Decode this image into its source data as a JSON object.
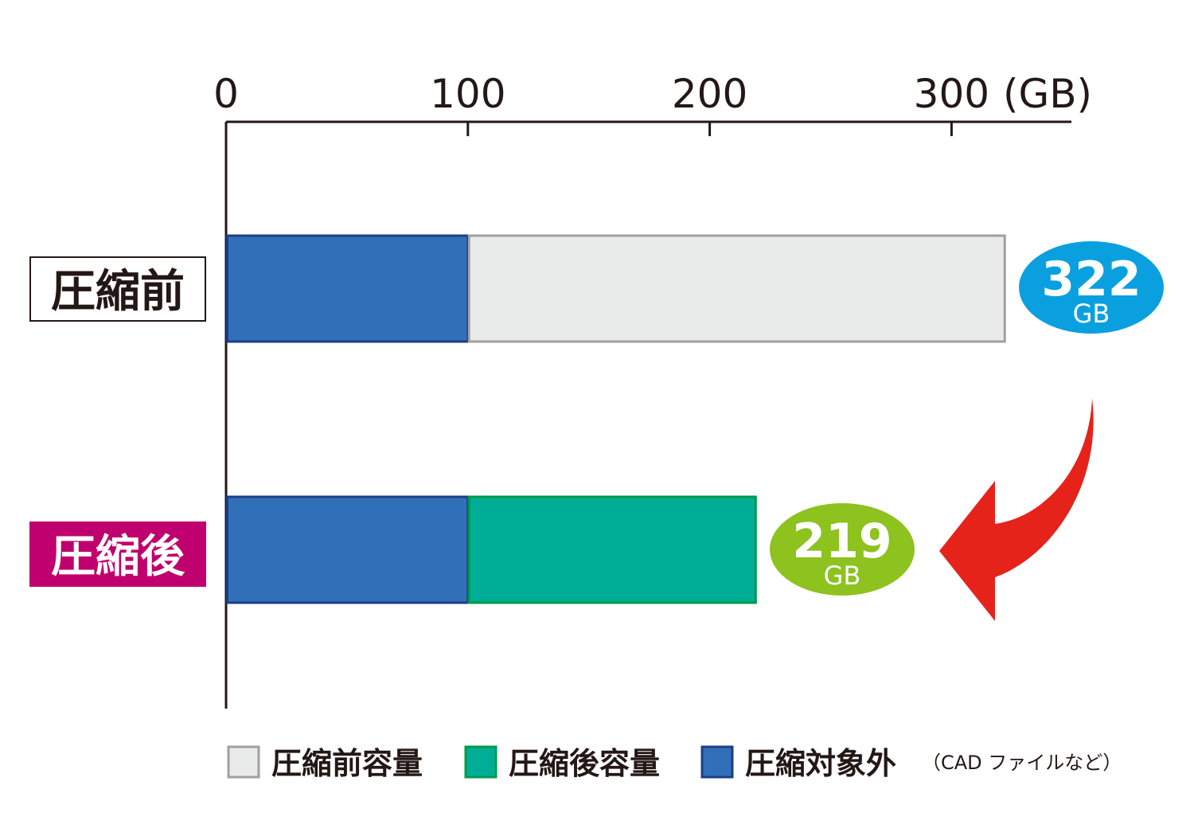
{
  "chart_data": {
    "type": "bar",
    "orientation": "horizontal",
    "stacked": true,
    "unit": "(GB)",
    "xlim": [
      0,
      350
    ],
    "xticks": [
      0,
      100,
      200,
      300
    ],
    "tick_labels": [
      "0",
      "100",
      "200",
      "300"
    ],
    "grid": false,
    "categories": [
      "圧縮前",
      "圧縮後"
    ],
    "series": [
      {
        "name": "圧縮対象外",
        "values": [
          100,
          100
        ],
        "color": "#3170b8",
        "border": "#1a3f88"
      },
      {
        "name": "圧縮前容量",
        "values": [
          222,
          0
        ],
        "color": "#e9ebea",
        "border": "#a0a0a0"
      },
      {
        "name": "圧縮後容量",
        "values": [
          0,
          119
        ],
        "color": "#00ae97",
        "border": "#009a4a"
      }
    ],
    "totals": [
      {
        "value": "322",
        "unit": "GB",
        "color": "#0aa0e0"
      },
      {
        "value": "219",
        "unit": "GB",
        "color": "#8dc21f"
      }
    ],
    "category_styles": [
      {
        "bg": "#ffffff",
        "fg": "#231815"
      },
      {
        "bg": "#c0006e",
        "fg": "#ffffff"
      }
    ],
    "arrow_color": "#e5231b",
    "legend": {
      "placement": "bottom",
      "items": [
        {
          "label": "圧縮前容量",
          "color": "#e9ebea",
          "border": "#a0a0a0"
        },
        {
          "label": "圧縮後容量",
          "color": "#00ae97",
          "border": "#009a4a"
        },
        {
          "label": "圧縮対象外",
          "color": "#3170b8",
          "border": "#1a3f88"
        }
      ],
      "note": "（CAD ファイルなど）"
    }
  }
}
